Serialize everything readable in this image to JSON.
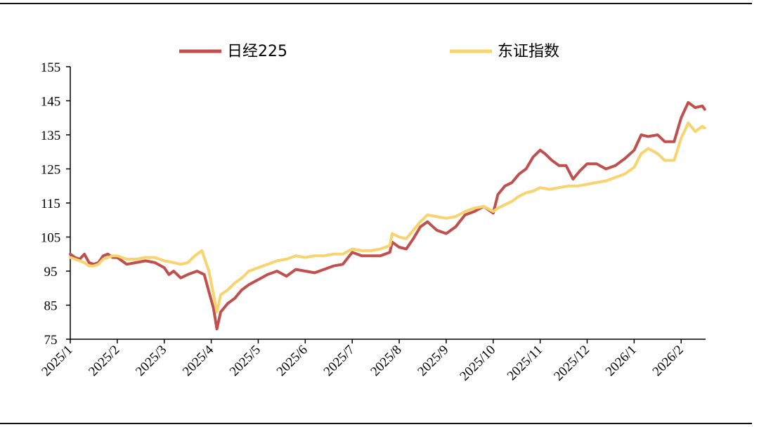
{
  "chart_data": {
    "type": "line",
    "title": "",
    "xlabel": "",
    "ylabel": "",
    "ylim": [
      75,
      155
    ],
    "yticks": [
      75,
      85,
      95,
      105,
      115,
      125,
      135,
      145,
      155
    ],
    "xticks": [
      "2025/1",
      "2025/2",
      "2025/3",
      "2025/4",
      "2025/5",
      "2025/6",
      "2025/7",
      "2025/8",
      "2025/9",
      "2025/10",
      "2025/11",
      "2025/12",
      "2026/1",
      "2026/2"
    ],
    "legend_position": "top",
    "grid": false,
    "series": [
      {
        "name": "日经225",
        "color": "#c0504d",
        "points": [
          [
            "2025/1",
            100
          ],
          [
            "2025/1.1",
            99
          ],
          [
            "2025/1.2",
            98.5
          ],
          [
            "2025/1.3",
            100
          ],
          [
            "2025/1.4",
            97.5
          ],
          [
            "2025/1.5",
            97
          ],
          [
            "2025/1.6",
            97.5
          ],
          [
            "2025/1.7",
            99.5
          ],
          [
            "2025/1.8",
            100
          ],
          [
            "2025/1.9",
            99
          ],
          [
            "2025/2",
            99
          ],
          [
            "2025/2.2",
            97
          ],
          [
            "2025/2.4",
            97.5
          ],
          [
            "2025/2.6",
            98
          ],
          [
            "2025/2.8",
            97.5
          ],
          [
            "2025/3",
            96
          ],
          [
            "2025/3.1",
            94
          ],
          [
            "2025/3.2",
            95
          ],
          [
            "2025/3.35",
            93
          ],
          [
            "2025/3.5",
            94
          ],
          [
            "2025/3.7",
            95
          ],
          [
            "2025/3.85",
            94
          ],
          [
            "2025/3.95",
            89
          ],
          [
            "2025/4.05",
            84
          ],
          [
            "2025/4.12",
            78
          ],
          [
            "2025/4.2",
            83
          ],
          [
            "2025/4.35",
            85.5
          ],
          [
            "2025/4.5",
            87
          ],
          [
            "2025/4.65",
            89.5
          ],
          [
            "2025/4.8",
            91
          ],
          [
            "2025/5",
            92.5
          ],
          [
            "2025/5.2",
            94
          ],
          [
            "2025/5.4",
            95
          ],
          [
            "2025/5.6",
            93.5
          ],
          [
            "2025/5.8",
            95.5
          ],
          [
            "2025/6",
            95
          ],
          [
            "2025/6.2",
            94.5
          ],
          [
            "2025/6.4",
            95.5
          ],
          [
            "2025/6.6",
            96.5
          ],
          [
            "2025/6.8",
            97
          ],
          [
            "2025/7",
            100.5
          ],
          [
            "2025/7.2",
            99.5
          ],
          [
            "2025/7.4",
            99.5
          ],
          [
            "2025/7.6",
            99.5
          ],
          [
            "2025/7.8",
            100.5
          ],
          [
            "2025/7.85",
            103.5
          ],
          [
            "2025/8",
            102
          ],
          [
            "2025/8.15",
            101.5
          ],
          [
            "2025/8.3",
            104.5
          ],
          [
            "2025/8.45",
            108
          ],
          [
            "2025/8.6",
            109.5
          ],
          [
            "2025/8.8",
            107
          ],
          [
            "2025/9",
            106
          ],
          [
            "2025/9.2",
            108
          ],
          [
            "2025/9.4",
            111.5
          ],
          [
            "2025/9.6",
            112.5
          ],
          [
            "2025/9.8",
            114
          ],
          [
            "2025/10",
            112
          ],
          [
            "2025/10.1",
            117.5
          ],
          [
            "2025/10.25",
            120
          ],
          [
            "2025/10.4",
            121
          ],
          [
            "2025/10.55",
            123.5
          ],
          [
            "2025/10.7",
            125
          ],
          [
            "2025/10.85",
            128.5
          ],
          [
            "2025/11",
            130.5
          ],
          [
            "2025/11.1",
            129.5
          ],
          [
            "2025/11.25",
            127.5
          ],
          [
            "2025/11.4",
            126
          ],
          [
            "2025/11.55",
            126
          ],
          [
            "2025/11.7",
            122
          ],
          [
            "2025/11.85",
            124.5
          ],
          [
            "2025/12",
            126.5
          ],
          [
            "2025/12.2",
            126.5
          ],
          [
            "2025/12.4",
            125
          ],
          [
            "2025/12.6",
            126
          ],
          [
            "2025/12.8",
            128
          ],
          [
            "2026/1",
            130.5
          ],
          [
            "2026/1.15",
            135
          ],
          [
            "2026/1.3",
            134.5
          ],
          [
            "2026/1.5",
            135
          ],
          [
            "2026/1.65",
            133
          ],
          [
            "2026/1.85",
            133
          ],
          [
            "2026/2",
            140
          ],
          [
            "2026/2.15",
            144.5
          ],
          [
            "2026/2.3",
            143
          ],
          [
            "2026/2.45",
            143.5
          ],
          [
            "2026/2.5",
            142.5
          ]
        ]
      },
      {
        "name": "东证指数",
        "color": "#f8d36e",
        "points": [
          [
            "2025/1",
            99
          ],
          [
            "2025/1.1",
            98.5
          ],
          [
            "2025/1.2",
            98
          ],
          [
            "2025/1.3",
            97.5
          ],
          [
            "2025/1.4",
            96.5
          ],
          [
            "2025/1.5",
            96.5
          ],
          [
            "2025/1.6",
            97
          ],
          [
            "2025/1.7",
            98.5
          ],
          [
            "2025/1.8",
            99
          ],
          [
            "2025/1.9",
            99.5
          ],
          [
            "2025/2",
            99.5
          ],
          [
            "2025/2.2",
            98.5
          ],
          [
            "2025/2.4",
            98.5
          ],
          [
            "2025/2.6",
            99
          ],
          [
            "2025/2.8",
            99
          ],
          [
            "2025/3",
            98
          ],
          [
            "2025/3.2",
            97.5
          ],
          [
            "2025/3.35",
            97
          ],
          [
            "2025/3.5",
            97.5
          ],
          [
            "2025/3.65",
            99.5
          ],
          [
            "2025/3.8",
            101
          ],
          [
            "2025/3.95",
            95
          ],
          [
            "2025/4.05",
            88
          ],
          [
            "2025/4.12",
            83
          ],
          [
            "2025/4.2",
            88
          ],
          [
            "2025/4.35",
            89.5
          ],
          [
            "2025/4.5",
            91.5
          ],
          [
            "2025/4.65",
            93
          ],
          [
            "2025/4.8",
            95
          ],
          [
            "2025/5",
            96
          ],
          [
            "2025/5.2",
            97
          ],
          [
            "2025/5.4",
            98
          ],
          [
            "2025/5.6",
            98.5
          ],
          [
            "2025/5.8",
            99.5
          ],
          [
            "2025/6",
            99
          ],
          [
            "2025/6.2",
            99.5
          ],
          [
            "2025/6.4",
            99.5
          ],
          [
            "2025/6.6",
            100
          ],
          [
            "2025/6.8",
            100
          ],
          [
            "2025/7",
            101.5
          ],
          [
            "2025/7.2",
            101
          ],
          [
            "2025/7.4",
            101
          ],
          [
            "2025/7.6",
            101.5
          ],
          [
            "2025/7.8",
            102.5
          ],
          [
            "2025/7.85",
            106
          ],
          [
            "2025/8",
            105
          ],
          [
            "2025/8.15",
            104.5
          ],
          [
            "2025/8.3",
            107
          ],
          [
            "2025/8.45",
            109.5
          ],
          [
            "2025/8.6",
            111.5
          ],
          [
            "2025/8.8",
            111
          ],
          [
            "2025/9",
            110.5
          ],
          [
            "2025/9.2",
            111
          ],
          [
            "2025/9.4",
            112.5
          ],
          [
            "2025/9.6",
            113.5
          ],
          [
            "2025/9.8",
            114
          ],
          [
            "2025/10",
            112.5
          ],
          [
            "2025/10.1",
            113.5
          ],
          [
            "2025/10.25",
            114.5
          ],
          [
            "2025/10.4",
            115.5
          ],
          [
            "2025/10.55",
            117
          ],
          [
            "2025/10.7",
            118
          ],
          [
            "2025/10.85",
            118.5
          ],
          [
            "2025/11",
            119.5
          ],
          [
            "2025/11.2",
            119
          ],
          [
            "2025/11.4",
            119.5
          ],
          [
            "2025/11.6",
            120
          ],
          [
            "2025/11.8",
            120
          ],
          [
            "2025/12",
            120.5
          ],
          [
            "2025/12.2",
            121
          ],
          [
            "2025/12.4",
            121.5
          ],
          [
            "2025/12.6",
            122.5
          ],
          [
            "2025/12.8",
            123.5
          ],
          [
            "2026/1",
            125.5
          ],
          [
            "2026/1.15",
            129.5
          ],
          [
            "2026/1.3",
            131
          ],
          [
            "2026/1.5",
            129.5
          ],
          [
            "2026/1.65",
            127.5
          ],
          [
            "2026/1.85",
            127.5
          ],
          [
            "2026/2",
            134
          ],
          [
            "2026/2.15",
            138.5
          ],
          [
            "2026/2.3",
            136
          ],
          [
            "2026/2.45",
            137.5
          ],
          [
            "2026/2.5",
            137
          ]
        ]
      }
    ]
  }
}
